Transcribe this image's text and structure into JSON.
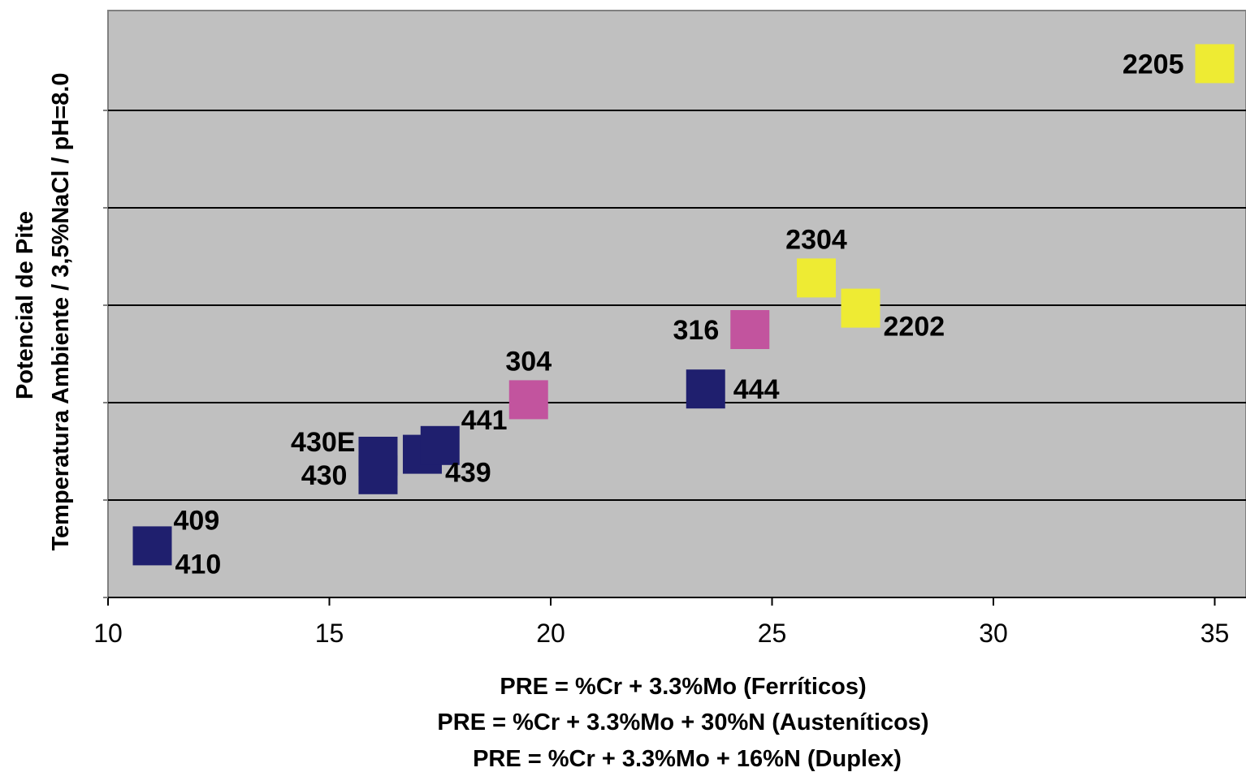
{
  "chart_data": {
    "type": "scatter",
    "ylabel_lines": [
      "Potencial de Pite",
      "Temperatura Ambiente / 3,5%NaCl / pH=8.0"
    ],
    "xlabel_lines": [
      "PRE = %Cr + 3.3%Mo (Ferríticos)",
      "PRE = %Cr + 3.3%Mo + 30%N (Austeníticos)",
      "PRE = %Cr + 3.3%Mo + 16%N (Duplex)"
    ],
    "xlim": [
      10,
      35.7
    ],
    "ylim": [
      0,
      6
    ],
    "x_ticks": [
      10,
      15,
      20,
      25,
      30,
      35
    ],
    "y_gridlines": [
      1,
      2,
      3,
      4,
      5
    ],
    "y_ticks_unlabeled": true,
    "grid": true,
    "colors": {
      "plot_background": "#c0c0c0",
      "ferritic": "#1f1f6e",
      "austenitic": "#c2549e",
      "duplex": "#eeeb33",
      "gridline": "#000000"
    },
    "points": [
      {
        "label": "409",
        "x": 11.0,
        "y": 0.53,
        "group": "ferritic",
        "label_pos": "top-right"
      },
      {
        "label": "410",
        "x": 11.0,
        "y": 0.53,
        "group": "ferritic",
        "label_pos": "bottom-right"
      },
      {
        "label": "430E",
        "x": 16.1,
        "y": 1.45,
        "group": "ferritic",
        "label_pos": "top-left"
      },
      {
        "label": "430",
        "x": 16.1,
        "y": 1.26,
        "group": "ferritic",
        "label_pos": "left"
      },
      {
        "label": "439",
        "x": 17.1,
        "y": 1.47,
        "group": "ferritic",
        "label_pos": "bottom-right"
      },
      {
        "label": "441",
        "x": 17.5,
        "y": 1.56,
        "group": "ferritic",
        "label_pos": "top-right"
      },
      {
        "label": "304",
        "x": 19.5,
        "y": 2.03,
        "group": "austenitic",
        "label_pos": "top"
      },
      {
        "label": "444",
        "x": 23.5,
        "y": 2.14,
        "group": "ferritic",
        "label_pos": "right"
      },
      {
        "label": "316",
        "x": 24.5,
        "y": 2.75,
        "group": "austenitic",
        "label_pos": "left"
      },
      {
        "label": "2304",
        "x": 26.0,
        "y": 3.28,
        "group": "duplex",
        "label_pos": "top"
      },
      {
        "label": "2202",
        "x": 27.0,
        "y": 2.97,
        "group": "duplex",
        "label_pos": "bottom-right"
      },
      {
        "label": "2205",
        "x": 35.0,
        "y": 5.48,
        "group": "duplex",
        "label_pos": "left"
      }
    ]
  }
}
